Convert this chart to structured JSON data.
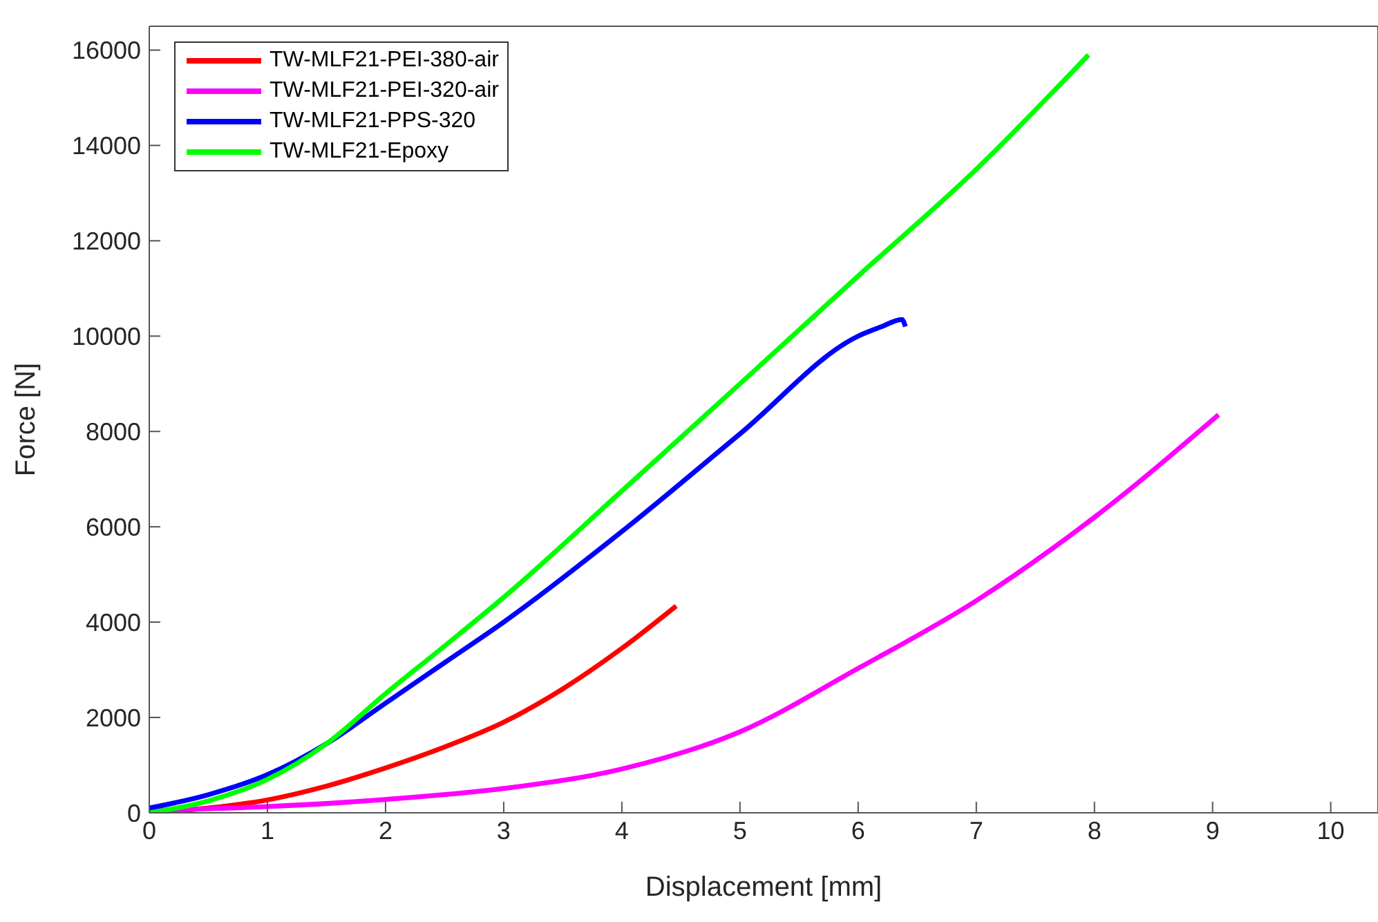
{
  "chart_data": {
    "type": "line",
    "xlabel": "Displacement [mm]",
    "ylabel": "Force [N]",
    "xlim": [
      0,
      10.4
    ],
    "ylim": [
      0,
      16500
    ],
    "xticks": [
      0,
      1,
      2,
      3,
      4,
      5,
      6,
      7,
      8,
      9,
      10
    ],
    "yticks": [
      0,
      2000,
      4000,
      6000,
      8000,
      10000,
      12000,
      14000,
      16000
    ],
    "legend": "top left",
    "marker": "none",
    "line_style": "solid",
    "series": [
      {
        "name": "TW-MLF21-PEI-380-air",
        "color": "#ff0000",
        "x": [
          0,
          0.5,
          1,
          1.5,
          2,
          2.5,
          3,
          3.5,
          4,
          4.46
        ],
        "values": [
          0,
          100,
          270,
          560,
          940,
          1380,
          1900,
          2600,
          3450,
          4340
        ]
      },
      {
        "name": "TW-MLF21-PEI-320-air",
        "color": "#ff00ff",
        "x": [
          0,
          1,
          2,
          3,
          4,
          5,
          6,
          7,
          8,
          9.05
        ],
        "values": [
          50,
          130,
          280,
          510,
          920,
          1700,
          3030,
          4450,
          6200,
          8350
        ]
      },
      {
        "name": "TW-MLF21-PPS-320",
        "color": "#0000ff",
        "x": [
          0,
          0.5,
          1,
          1.5,
          2,
          2.5,
          3,
          4,
          5,
          6,
          6.2,
          6.37,
          6.4
        ],
        "values": [
          100,
          380,
          800,
          1450,
          2300,
          3150,
          4000,
          5900,
          7950,
          10000,
          10200,
          10350,
          10200
        ]
      },
      {
        "name": "TW-MLF21-Epoxy",
        "color": "#00ff00",
        "x": [
          0,
          0.5,
          1,
          1.5,
          2,
          2.5,
          3,
          4,
          5,
          6,
          7,
          7.95
        ],
        "values": [
          0,
          250,
          700,
          1450,
          2500,
          3500,
          4520,
          6750,
          9000,
          11260,
          13500,
          15900
        ]
      }
    ]
  }
}
